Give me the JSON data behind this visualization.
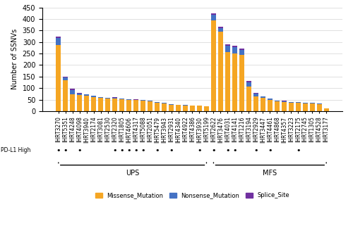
{
  "categories": [
    "IHRT3270",
    "IHRT5351",
    "IHRT4248",
    "IHRT4098",
    "IHRT3940",
    "IHRT2174",
    "IHRT3081",
    "IHRT2530",
    "IHRT2320",
    "IHRT1805",
    "IHRT4606",
    "IHRT4317",
    "IHRT5088",
    "IHRT2051",
    "IHRT5479",
    "IHRT3943",
    "IHRT2931",
    "IHRT4340",
    "IHRT4922",
    "IHRT4386",
    "IHRT3930",
    "IHRT5199",
    "IHRT2622",
    "IHRT3476",
    "IHRT4031",
    "IHRT4141",
    "IHRT1216",
    "IHRT3194",
    "IHRT2929",
    "IHRT3447",
    "IHRT4461",
    "IHRT4868",
    "IHRT4357",
    "IHRT3223",
    "IHRT2175",
    "IHRT2745",
    "IHRT1305",
    "IHRT4528",
    "IHRT3177"
  ],
  "missense": [
    288,
    135,
    72,
    70,
    68,
    62,
    57,
    55,
    54,
    52,
    49,
    48,
    47,
    44,
    37,
    34,
    27,
    27,
    25,
    24,
    24,
    20,
    395,
    345,
    255,
    250,
    245,
    108,
    63,
    57,
    50,
    43,
    41,
    38,
    36,
    34,
    33,
    30,
    12
  ],
  "nonsense": [
    28,
    12,
    20,
    7,
    4,
    5,
    3,
    3,
    4,
    3,
    3,
    2,
    2,
    2,
    2,
    2,
    2,
    1,
    1,
    1,
    1,
    1,
    22,
    15,
    28,
    28,
    20,
    18,
    14,
    6,
    4,
    3,
    3,
    2,
    3,
    2,
    2,
    2,
    1
  ],
  "splice": [
    8,
    2,
    5,
    2,
    2,
    1,
    1,
    1,
    2,
    1,
    1,
    1,
    1,
    1,
    0,
    0,
    0,
    0,
    0,
    0,
    0,
    0,
    8,
    5,
    7,
    5,
    5,
    4,
    3,
    1,
    1,
    1,
    1,
    1,
    1,
    1,
    1,
    1,
    0
  ],
  "pdl1_high": [
    true,
    true,
    false,
    true,
    false,
    false,
    false,
    false,
    true,
    true,
    true,
    true,
    true,
    false,
    true,
    false,
    true,
    false,
    false,
    false,
    true,
    false,
    true,
    false,
    true,
    true,
    false,
    false,
    true,
    false,
    true,
    false,
    false,
    false,
    true,
    false,
    false,
    false,
    false
  ],
  "ups_count": 22,
  "missense_color": "#F5A623",
  "nonsense_color": "#4472C4",
  "splice_color": "#7030A0",
  "ylabel": "Number of SSNVs",
  "ylim": [
    0,
    450
  ],
  "yticks": [
    0,
    50,
    100,
    150,
    200,
    250,
    300,
    350,
    400,
    450
  ],
  "ups_label": "UPS",
  "mfs_label": "MFS",
  "pdl1_label": "PD-L1 High",
  "legend_labels": [
    "Missense_Mutation",
    "Nonsense_Mutation",
    "Splice_Site"
  ]
}
